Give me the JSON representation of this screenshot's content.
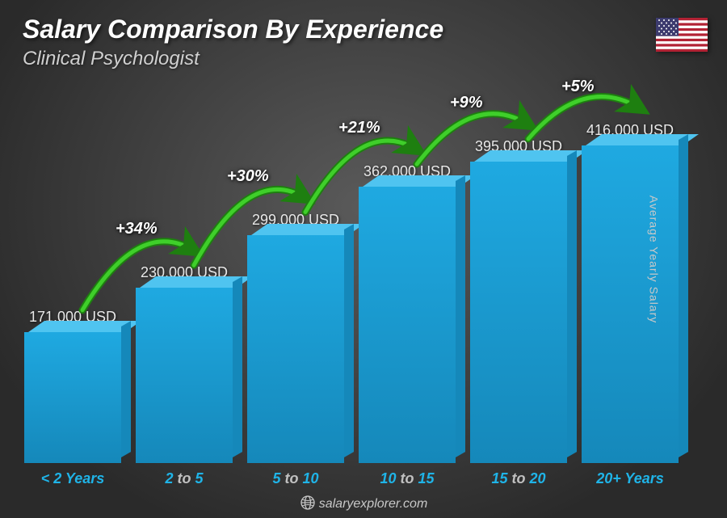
{
  "header": {
    "title": "Salary Comparison By Experience",
    "subtitle": "Clinical Psychologist"
  },
  "flag": {
    "name": "us-flag"
  },
  "chart": {
    "type": "bar",
    "yaxis_label": "Average Yearly Salary",
    "ymax": 416000,
    "bar_fill": "#1fa9e1",
    "bar_top": "#4fc4f0",
    "bar_side": "#1588ba",
    "accent_color": "#1fb4e8",
    "muted_color": "#c0c0c0",
    "categories": [
      {
        "label_pre": "< 2",
        "label_post": "Years",
        "value": 171000,
        "value_label": "171,000 USD"
      },
      {
        "label_pre": "2",
        "label_mid": "to",
        "label_post": "5",
        "value": 230000,
        "value_label": "230,000 USD"
      },
      {
        "label_pre": "5",
        "label_mid": "to",
        "label_post": "10",
        "value": 299000,
        "value_label": "299,000 USD"
      },
      {
        "label_pre": "10",
        "label_mid": "to",
        "label_post": "15",
        "value": 362000,
        "value_label": "362,000 USD"
      },
      {
        "label_pre": "15",
        "label_mid": "to",
        "label_post": "20",
        "value": 395000,
        "value_label": "395,000 USD"
      },
      {
        "label_pre": "20+",
        "label_post": "Years",
        "value": 416000,
        "value_label": "416,000 USD"
      }
    ],
    "increments": [
      {
        "label": "+34%",
        "stroke": "#3fcf2a",
        "stroke_dark": "#1e7f10"
      },
      {
        "label": "+30%",
        "stroke": "#3fcf2a",
        "stroke_dark": "#1e7f10"
      },
      {
        "label": "+21%",
        "stroke": "#3fcf2a",
        "stroke_dark": "#1e7f10"
      },
      {
        "label": "+9%",
        "stroke": "#3fcf2a",
        "stroke_dark": "#1e7f10"
      },
      {
        "label": "+5%",
        "stroke": "#3fcf2a",
        "stroke_dark": "#1e7f10"
      }
    ]
  },
  "footer": {
    "text": "salaryexplorer.com"
  }
}
